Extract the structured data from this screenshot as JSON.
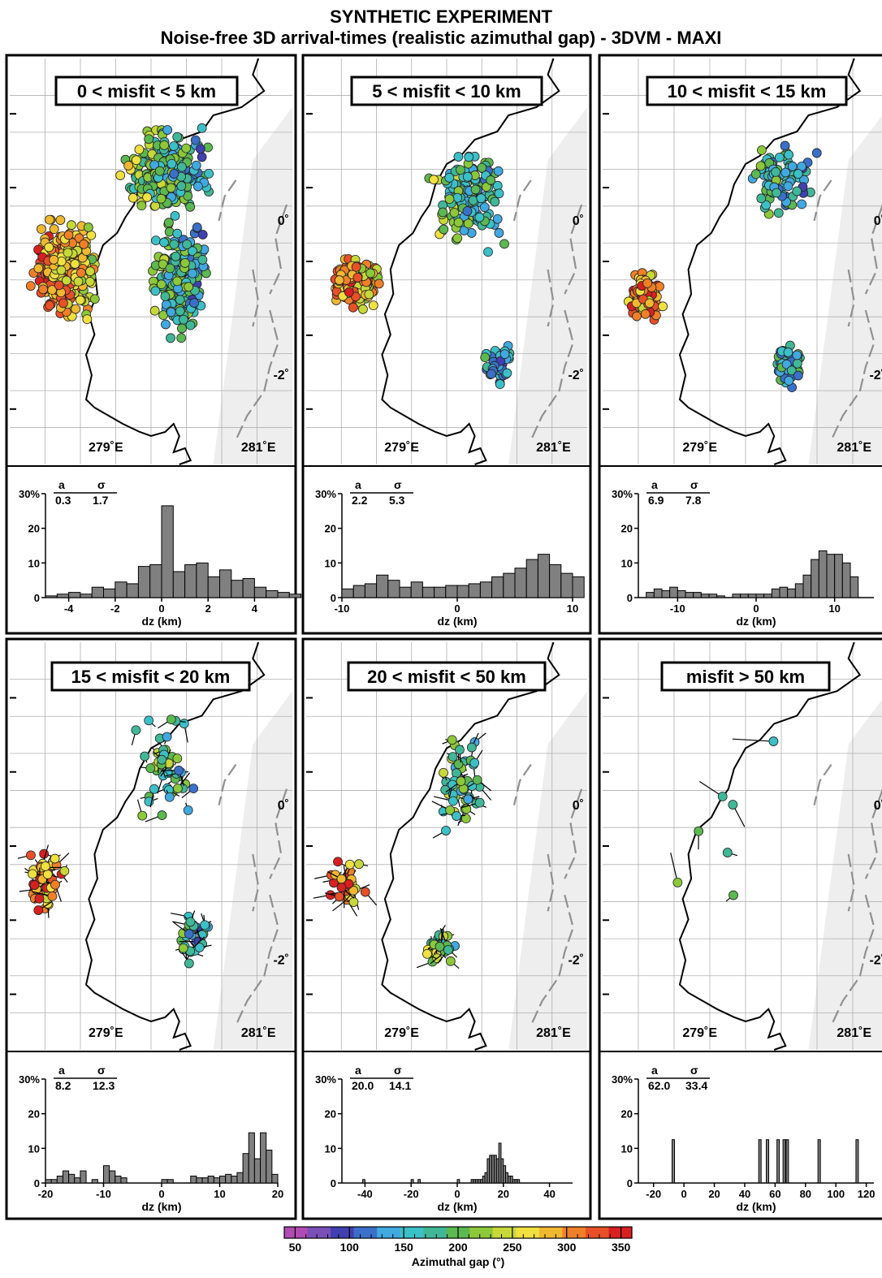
{
  "figure": {
    "title_line1": "SYNTHETIC EXPERIMENT",
    "title_line2": "Noise-free 3D arrival-times (realistic azimuthal gap) - 3DVM - MAXI"
  },
  "map_labels": {
    "lon_left": "279˚E",
    "lon_right": "281˚E",
    "lat_zero": "0˚",
    "lat_minus2": "-2˚"
  },
  "stats_header": {
    "a": "a",
    "sigma": "σ"
  },
  "hist_xlabel": "dz (km)",
  "colors": {
    "bars": "#808080",
    "coast": "#000000",
    "trench_dash": "#909090",
    "ocean_shade": "#eeeeee",
    "colorbar": [
      "#b14cb2",
      "#7a4fb8",
      "#4040b0",
      "#3a70c8",
      "#42a8e0",
      "#3cc0c8",
      "#40b898",
      "#5cb850",
      "#8cc83a",
      "#c8d838",
      "#f0e040",
      "#f0b830",
      "#f08028",
      "#e85028",
      "#d82020"
    ]
  },
  "colorbar": {
    "ticks": [
      "50",
      "100",
      "150",
      "200",
      "250",
      "300",
      "350"
    ],
    "min": 40,
    "max": 360,
    "label": "Azimuthal gap (°)"
  },
  "chart_data": [
    {
      "type": "bar",
      "panel_label": "0 < misfit < 5 km",
      "a": "0.3",
      "sigma": "1.7",
      "xlim": [
        -5,
        5
      ],
      "ylim": [
        0,
        30
      ],
      "xticks": [
        "-4",
        "-2",
        "0",
        "2",
        "4"
      ],
      "xtick_values": [
        -4,
        -2,
        0,
        2,
        4
      ],
      "yticks": [
        "30%",
        "20",
        "10",
        "0"
      ],
      "ytick_values": [
        30,
        20,
        10,
        0
      ],
      "bin_start": -5,
      "bin_width": 0.5,
      "values": [
        0.5,
        1,
        1.5,
        1,
        3,
        2.5,
        4.5,
        4,
        9,
        9.5,
        26.5,
        7.5,
        9.5,
        10,
        6,
        8,
        5,
        5.5,
        3,
        2,
        1.5,
        1
      ],
      "note": "bins start at -5 km"
    },
    {
      "type": "bar",
      "panel_label": "5 < misfit < 10 km",
      "a": "2.2",
      "sigma": "5.3",
      "xlim": [
        -10,
        10
      ],
      "ylim": [
        0,
        30
      ],
      "xticks": [
        "-10",
        "0",
        "10"
      ],
      "xtick_values": [
        -10,
        0,
        10
      ],
      "yticks": [
        "30%",
        "20",
        "10",
        "0"
      ],
      "ytick_values": [
        30,
        20,
        10,
        0
      ],
      "bin_start": -10,
      "bin_width": 1,
      "values": [
        2.5,
        3.5,
        4,
        6.5,
        5,
        3,
        4.5,
        3,
        3,
        3.5,
        3.5,
        4,
        4.5,
        6,
        7,
        8.5,
        11,
        12.5,
        9.5,
        7,
        6
      ]
    },
    {
      "type": "bar",
      "panel_label": "10 < misfit < 15 km",
      "a": "6.9",
      "sigma": "7.8",
      "xlim": [
        -15,
        15
      ],
      "ylim": [
        0,
        30
      ],
      "xticks": [
        "-10",
        "0",
        "10"
      ],
      "xtick_values": [
        -10,
        0,
        10
      ],
      "yticks": [
        "30%",
        "20",
        "10",
        "0"
      ],
      "ytick_values": [
        30,
        20,
        10,
        0
      ],
      "bin_start": -14,
      "bin_width": 1,
      "values": [
        1.5,
        2.5,
        2,
        3,
        2,
        1.5,
        1.5,
        1,
        1,
        0.5,
        0,
        1,
        1,
        1,
        1,
        1,
        2.5,
        3,
        2.5,
        4,
        6.5,
        11,
        13.5,
        12.5,
        12.5,
        10,
        6
      ]
    },
    {
      "type": "bar",
      "panel_label": "15 < misfit < 20 km",
      "a": "8.2",
      "sigma": "12.3",
      "xlim": [
        -20,
        20
      ],
      "ylim": [
        0,
        30
      ],
      "xticks": [
        "-20",
        "-10",
        "0",
        "10",
        "20"
      ],
      "xtick_values": [
        -20,
        -10,
        0,
        10,
        20
      ],
      "yticks": [
        "30%",
        "20",
        "10",
        "0"
      ],
      "ytick_values": [
        30,
        20,
        10,
        0
      ],
      "bin_start": -20,
      "bin_width": 1,
      "values": [
        1,
        1,
        2,
        3.5,
        2.5,
        1.5,
        3.5,
        0,
        1,
        0,
        5,
        3.5,
        2,
        1.5,
        0,
        0,
        0,
        0,
        0,
        0,
        1,
        1,
        0,
        0,
        0,
        2,
        1.5,
        1.5,
        2,
        1.5,
        2,
        2.5,
        2,
        3,
        8.5,
        14.5,
        7,
        14.5,
        9.5,
        2.5
      ]
    },
    {
      "type": "bar",
      "panel_label": "20 < misfit < 50 km",
      "a": "20.0",
      "sigma": "14.1",
      "xlim": [
        -50,
        50
      ],
      "ylim": [
        0,
        30
      ],
      "xticks": [
        "-40",
        "-20",
        "0",
        "20",
        "40"
      ],
      "xtick_values": [
        -40,
        -20,
        0,
        20,
        40
      ],
      "yticks": [
        "30%",
        "20",
        "10",
        "0"
      ],
      "ytick_values": [
        30,
        20,
        10,
        0
      ],
      "bin_start": -50,
      "bin_width": 1,
      "values": [
        0,
        0,
        0,
        0,
        0,
        0,
        0,
        0,
        0,
        1,
        0,
        0,
        0,
        0,
        0,
        0,
        0,
        0,
        0,
        0,
        0,
        0,
        0,
        0,
        0,
        0,
        0,
        0,
        0,
        0,
        1,
        0,
        0,
        1,
        0,
        0,
        0,
        0,
        0,
        0,
        0,
        0,
        0,
        0,
        0,
        0,
        0,
        0,
        0,
        0,
        1,
        0,
        0,
        0,
        0,
        0,
        1,
        1,
        1,
        1,
        1,
        2,
        3,
        7,
        8,
        8,
        8,
        7,
        11.5,
        7,
        5,
        3,
        2,
        2,
        1,
        1,
        1,
        0,
        0,
        0,
        0,
        0,
        0,
        0,
        0,
        0,
        0,
        0,
        0,
        0,
        0,
        0,
        0,
        0,
        0,
        0,
        0,
        0,
        0,
        0
      ]
    },
    {
      "type": "bar",
      "panel_label": "misfit > 50 km",
      "a": "62.0",
      "sigma": "33.4",
      "xlim": [
        -30,
        125
      ],
      "ylim": [
        0,
        30
      ],
      "xticks": [
        "-20",
        "0",
        "20",
        "40",
        "60",
        "80",
        "100",
        "120"
      ],
      "xtick_values": [
        -20,
        0,
        20,
        40,
        60,
        80,
        100,
        120
      ],
      "yticks": [
        "30%",
        "20",
        "10",
        "0"
      ],
      "ytick_values": [
        30,
        20,
        10,
        0
      ],
      "bar_positions": [
        -7,
        50,
        55,
        62,
        66,
        68,
        89,
        114
      ],
      "bar_value": 12.5
    }
  ]
}
